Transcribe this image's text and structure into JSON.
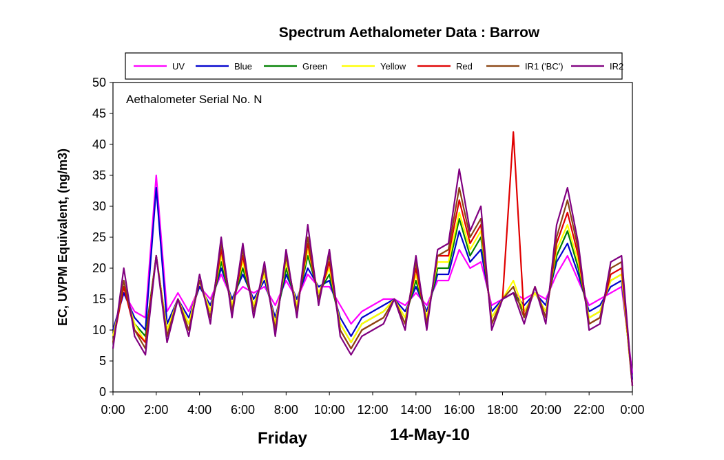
{
  "chart_data": {
    "type": "line",
    "title": "Spectrum Aethalometer Data  :  Barrow",
    "annotation": "Aethalometer  Serial No. N",
    "ylabel": "EC, UVPM Equivalent, (ng/m3)",
    "xlabel": "",
    "day_label": "Friday",
    "date_label": "14-May-10",
    "ylim": [
      0,
      50
    ],
    "yticks": [
      "0",
      "5",
      "10",
      "15",
      "20",
      "25",
      "30",
      "35",
      "40",
      "45",
      "50"
    ],
    "xlim_hours": [
      0,
      24
    ],
    "xticks": [
      "0:00",
      "2:00",
      "4:00",
      "6:00",
      "8:00",
      "10:00",
      "12:00",
      "14:00",
      "16:00",
      "18:00",
      "20:00",
      "22:00",
      "0:00"
    ],
    "grid": false,
    "legend_position": "top",
    "x_hours": [
      0,
      0.5,
      1,
      1.5,
      2,
      2.5,
      3,
      3.5,
      4,
      4.5,
      5,
      5.5,
      6,
      6.5,
      7,
      7.5,
      8,
      8.5,
      9,
      9.5,
      10,
      10.5,
      11,
      11.5,
      12,
      12.5,
      13,
      13.5,
      14,
      14.5,
      15,
      15.5,
      16,
      16.5,
      17,
      17.5,
      18,
      18.5,
      19,
      19.5,
      20,
      20.5,
      21,
      21.5,
      22,
      22.5,
      23,
      23.5,
      24
    ],
    "series": [
      {
        "name": "UV",
        "color": "#FF00FF",
        "values": [
          10,
          16,
          13,
          12,
          35,
          13,
          16,
          13,
          17,
          15,
          19,
          15,
          17,
          16,
          17,
          14,
          18,
          15,
          19,
          17,
          17,
          14,
          11,
          13,
          14,
          15,
          15,
          14,
          16,
          14,
          18,
          18,
          23,
          20,
          21,
          14,
          15,
          16,
          15,
          16,
          15,
          19,
          22,
          18,
          14,
          15,
          16,
          17,
          3
        ]
      },
      {
        "name": "Blue",
        "color": "#0000CD",
        "values": [
          10,
          16,
          12,
          10,
          33,
          11,
          15,
          12,
          17,
          14,
          20,
          15,
          19,
          15,
          18,
          12,
          19,
          15,
          20,
          17,
          18,
          12,
          9,
          12,
          13,
          14,
          15,
          13,
          17,
          13,
          19,
          19,
          26,
          21,
          23,
          13,
          15,
          16,
          14,
          16,
          14,
          21,
          24,
          19,
          13,
          14,
          17,
          18,
          2
        ]
      },
      {
        "name": "Green",
        "color": "#008000",
        "values": [
          9,
          17,
          11,
          9,
          22,
          10,
          15,
          11,
          18,
          13,
          21,
          14,
          20,
          14,
          19,
          11,
          20,
          14,
          22,
          16,
          19,
          11,
          8,
          11,
          12,
          13,
          15,
          12,
          18,
          12,
          20,
          20,
          28,
          22,
          25,
          12,
          15,
          16,
          13,
          16,
          13,
          22,
          26,
          20,
          12,
          13,
          18,
          19,
          1
        ]
      },
      {
        "name": "Yellow",
        "color": "#FFFF00",
        "values": [
          9,
          17,
          11,
          8,
          22,
          10,
          15,
          11,
          18,
          13,
          22,
          14,
          21,
          14,
          19,
          11,
          21,
          14,
          23,
          16,
          20,
          11,
          8,
          11,
          12,
          13,
          15,
          12,
          19,
          12,
          21,
          21,
          29,
          23,
          26,
          12,
          15,
          18,
          13,
          16,
          13,
          23,
          27,
          21,
          12,
          13,
          18,
          19,
          1
        ]
      },
      {
        "name": "Red",
        "color": "#E00000",
        "values": [
          8,
          17,
          10,
          8,
          22,
          9,
          15,
          10,
          18,
          12,
          23,
          13,
          22,
          13,
          20,
          10,
          22,
          13,
          24,
          15,
          21,
          10,
          7,
          10,
          11,
          12,
          15,
          11,
          20,
          11,
          22,
          22,
          31,
          24,
          27,
          11,
          15,
          42,
          12,
          17,
          12,
          24,
          29,
          22,
          11,
          12,
          19,
          20,
          1
        ]
      },
      {
        "name": "IR1 ('BC')",
        "color": "#8B4513",
        "values": [
          8,
          18,
          10,
          7,
          22,
          9,
          15,
          10,
          18,
          12,
          24,
          13,
          23,
          13,
          20,
          10,
          22,
          13,
          25,
          15,
          22,
          10,
          7,
          10,
          11,
          12,
          15,
          11,
          21,
          11,
          22,
          23,
          33,
          25,
          28,
          11,
          15,
          17,
          12,
          17,
          12,
          25,
          31,
          23,
          11,
          12,
          20,
          21,
          1
        ]
      },
      {
        "name": "IR2",
        "color": "#800080",
        "values": [
          7,
          20,
          9,
          6,
          22,
          8,
          15,
          9,
          19,
          11,
          25,
          12,
          24,
          12,
          21,
          9,
          23,
          12,
          27,
          14,
          23,
          9,
          6,
          9,
          10,
          11,
          15,
          10,
          22,
          10,
          23,
          24,
          36,
          26,
          30,
          10,
          15,
          16,
          11,
          17,
          11,
          27,
          33,
          24,
          10,
          11,
          21,
          22,
          1
        ]
      }
    ]
  }
}
